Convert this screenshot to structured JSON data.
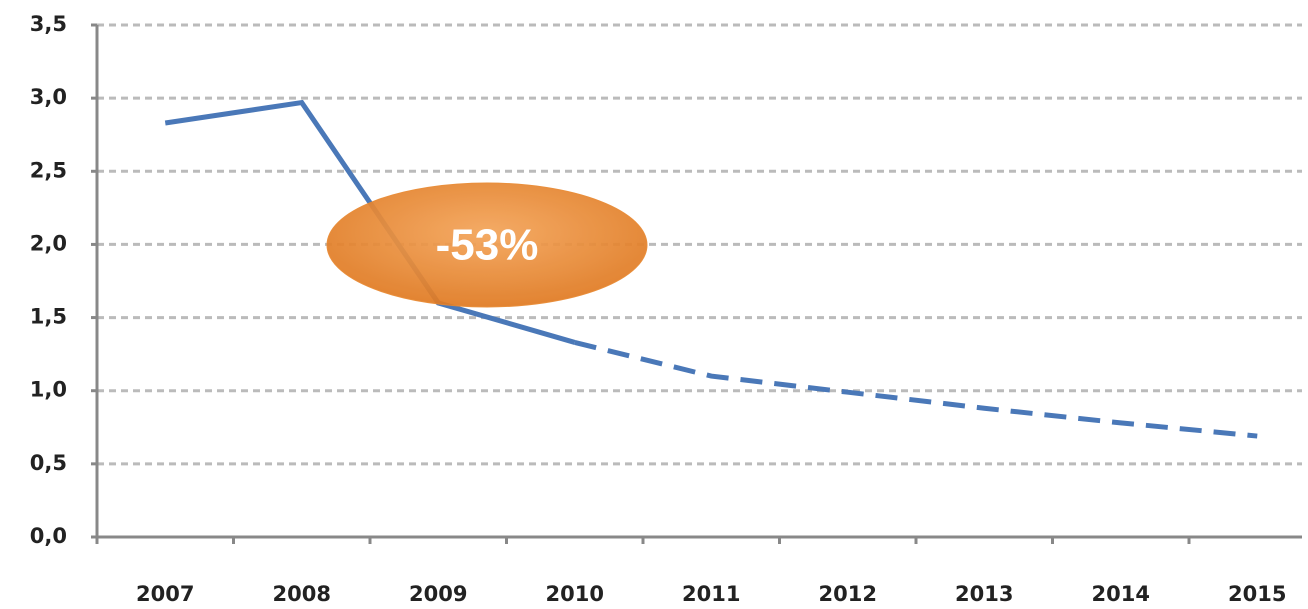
{
  "chart_data": {
    "type": "line",
    "categories": [
      "2007",
      "2008",
      "2009",
      "2010",
      "2011",
      "2012",
      "2013",
      "2014",
      "2015"
    ],
    "series": [
      {
        "color": "#4a78b8",
        "values": [
          2.83,
          2.97,
          1.6,
          1.33,
          null,
          null,
          null,
          null,
          null
        ]
      },
      {
        "color": "#4a78b8",
        "dashed": true,
        "values": [
          null,
          null,
          null,
          1.33,
          1.1,
          0.99,
          0.88,
          0.78,
          0.69
        ]
      }
    ],
    "ylim": [
      0,
      3.5
    ],
    "yticks": [
      {
        "value": 0,
        "label": "0,0"
      },
      {
        "value": 0.5,
        "label": "0,5"
      },
      {
        "value": 1,
        "label": "1,0"
      },
      {
        "value": 1.5,
        "label": "1,5"
      },
      {
        "value": 2,
        "label": "2,0"
      },
      {
        "value": 2.5,
        "label": "2,5"
      },
      {
        "value": 3,
        "label": "3,0"
      },
      {
        "value": 3.5,
        "label": "3,5"
      }
    ],
    "grid": true,
    "annotation": {
      "text": "-53%",
      "color": "#e8872e"
    }
  }
}
